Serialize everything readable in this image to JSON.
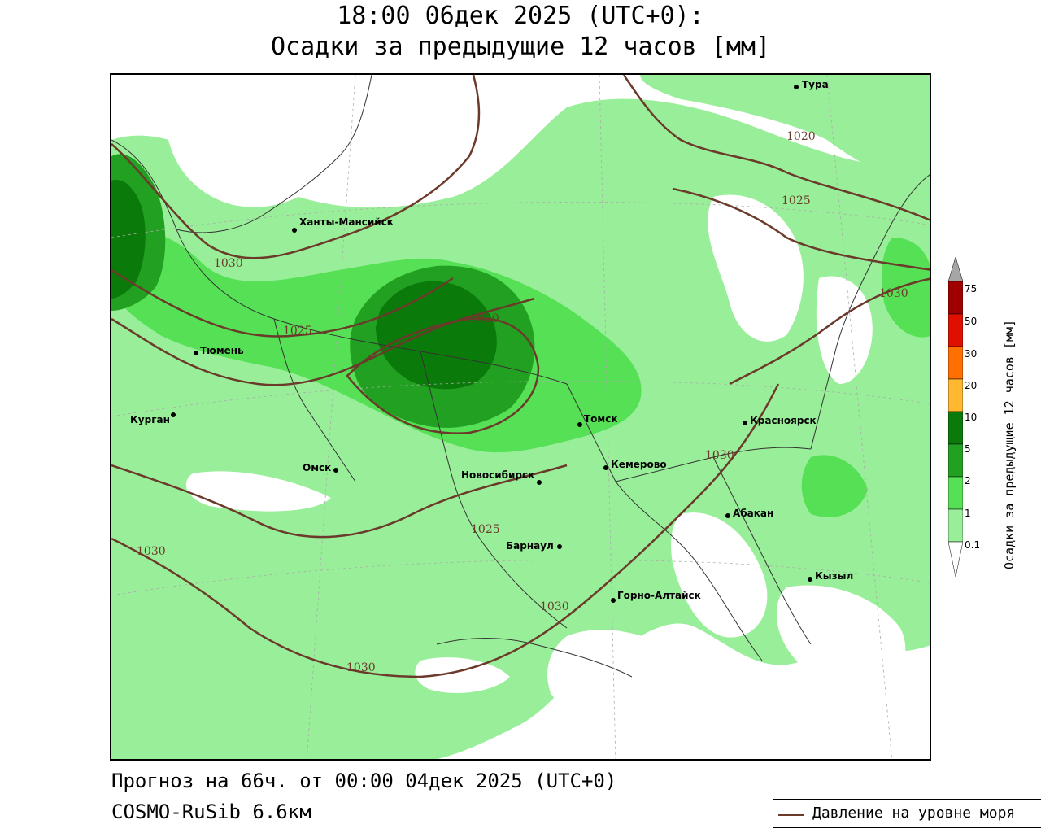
{
  "title_line1": "18:00 06дек 2025 (UTC+0):",
  "title_line2": "Осадки за предыдущие 12 часов [мм]",
  "cities": [
    {
      "name": "Тура",
      "id": "tura"
    },
    {
      "name": "Ханты-Мансийск",
      "id": "khanty-mansiysk"
    },
    {
      "name": "Тюмень",
      "id": "tyumen"
    },
    {
      "name": "Курган",
      "id": "kurgan"
    },
    {
      "name": "Омск",
      "id": "omsk"
    },
    {
      "name": "Новосибирск",
      "id": "novosibirsk"
    },
    {
      "name": "Томск",
      "id": "tomsk"
    },
    {
      "name": "Кемерово",
      "id": "kemerovo"
    },
    {
      "name": "Красноярск",
      "id": "krasnoyarsk"
    },
    {
      "name": "Абакан",
      "id": "abakan"
    },
    {
      "name": "Барнаул",
      "id": "barnaul"
    },
    {
      "name": "Горно-Алтайск",
      "id": "gorno-altaysk"
    },
    {
      "name": "Кызыл",
      "id": "kyzyl"
    }
  ],
  "isobar_labels": [
    "1030",
    "1025",
    "1020",
    "1020",
    "1025",
    "1030",
    "1030",
    "1025",
    "1030",
    "1030",
    "1030"
  ],
  "colorbar": {
    "title": "Осадки за предыдущие 12 часов [мм]",
    "ticks": [
      "75",
      "50",
      "30",
      "20",
      "10",
      "5",
      "2",
      "1",
      "0.1"
    ],
    "colors": [
      "#a6a6a6",
      "#a00000",
      "#e01000",
      "#ff7000",
      "#ffb830",
      "#0a7a0a",
      "#22a022",
      "#55e055",
      "#99ee99",
      "#ffffff"
    ]
  },
  "footer_line1": "Прогноз на 66ч. от 00:00 04дек 2025 (UTC+0)",
  "footer_line2": "COSMO-RuSib 6.6км",
  "legend_label": "Давление на уровне моря",
  "colors": {
    "precip_light": "#99ee99",
    "precip_medium": "#55e055",
    "precip_heavy": "#22a022",
    "precip_very_heavy": "#0a7a0a",
    "isobar": "#6b3a2a"
  }
}
